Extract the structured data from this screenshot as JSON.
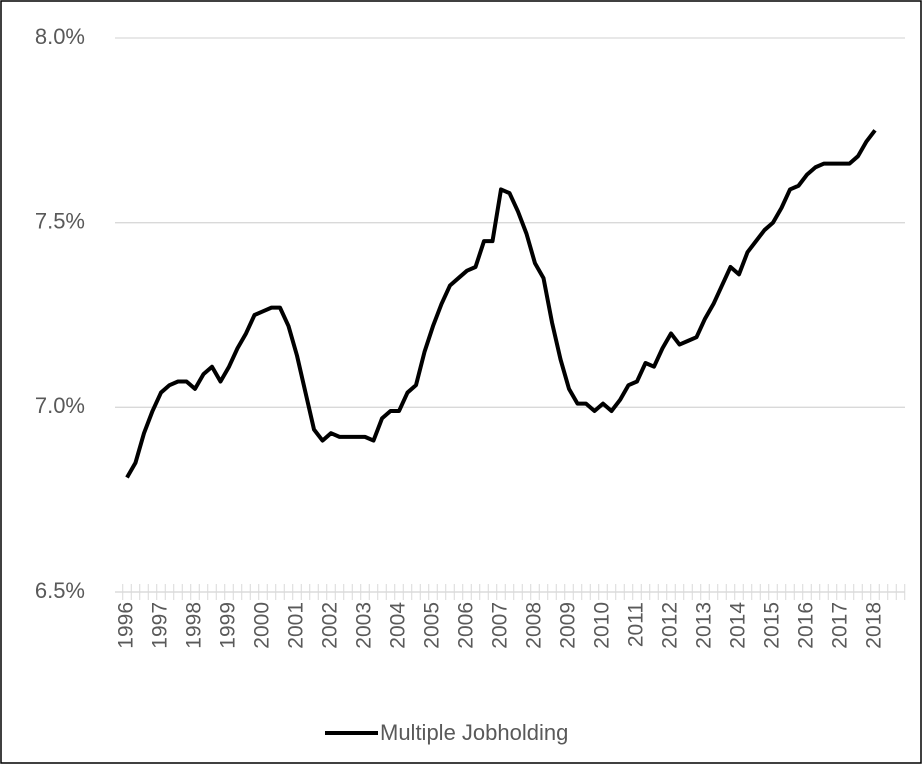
{
  "chart_data": {
    "type": "line",
    "categories": [
      "1996",
      null,
      null,
      null,
      "1997",
      null,
      null,
      null,
      "1998",
      null,
      null,
      null,
      "1999",
      null,
      null,
      null,
      "2000",
      null,
      null,
      null,
      "2001",
      null,
      null,
      null,
      "2002",
      null,
      null,
      null,
      "2003",
      null,
      null,
      null,
      "2004",
      null,
      null,
      null,
      "2005",
      null,
      null,
      null,
      "2006",
      null,
      null,
      null,
      "2007",
      null,
      null,
      null,
      "2008",
      null,
      null,
      null,
      "2009",
      null,
      null,
      null,
      "2010",
      null,
      null,
      null,
      "2011",
      null,
      null,
      null,
      "2012",
      null,
      null,
      null,
      "2013",
      null,
      null,
      null,
      "2014",
      null,
      null,
      null,
      "2015",
      null,
      null,
      null,
      "2016",
      null,
      null,
      null,
      "2017",
      null,
      null,
      null,
      "2018"
    ],
    "series": [
      {
        "name": "Multiple Jobholding",
        "color": "#000000",
        "values": [
          6.81,
          6.85,
          6.93,
          6.99,
          7.04,
          7.06,
          7.07,
          7.07,
          7.05,
          7.09,
          7.11,
          7.07,
          7.11,
          7.16,
          7.2,
          7.25,
          7.26,
          7.27,
          7.27,
          7.22,
          7.14,
          7.04,
          6.94,
          6.91,
          6.93,
          6.92,
          6.92,
          6.92,
          6.92,
          6.91,
          6.97,
          6.99,
          6.99,
          7.04,
          7.06,
          7.15,
          7.22,
          7.28,
          7.33,
          7.35,
          7.37,
          7.38,
          7.45,
          7.45,
          7.59,
          7.58,
          7.53,
          7.47,
          7.39,
          7.35,
          7.23,
          7.13,
          7.05,
          7.01,
          7.01,
          6.99,
          7.01,
          6.99,
          7.02,
          7.06,
          7.07,
          7.12,
          7.11,
          7.16,
          7.2,
          7.17,
          7.18,
          7.19,
          7.24,
          7.28,
          7.33,
          7.38,
          7.36,
          7.42,
          7.45,
          7.48,
          7.5,
          7.54,
          7.59,
          7.6,
          7.63,
          7.65,
          7.66,
          7.66,
          7.66,
          7.66,
          7.68,
          7.72,
          7.75
        ]
      }
    ],
    "ylim": [
      6.5,
      8.0
    ],
    "yticks": [
      {
        "value": 6.5,
        "label": "6.5%"
      },
      {
        "value": 7.0,
        "label": "7.0%"
      },
      {
        "value": 7.5,
        "label": "7.5%"
      },
      {
        "value": 8.0,
        "label": "8.0%"
      }
    ],
    "grid": true,
    "legend": "bottom"
  }
}
